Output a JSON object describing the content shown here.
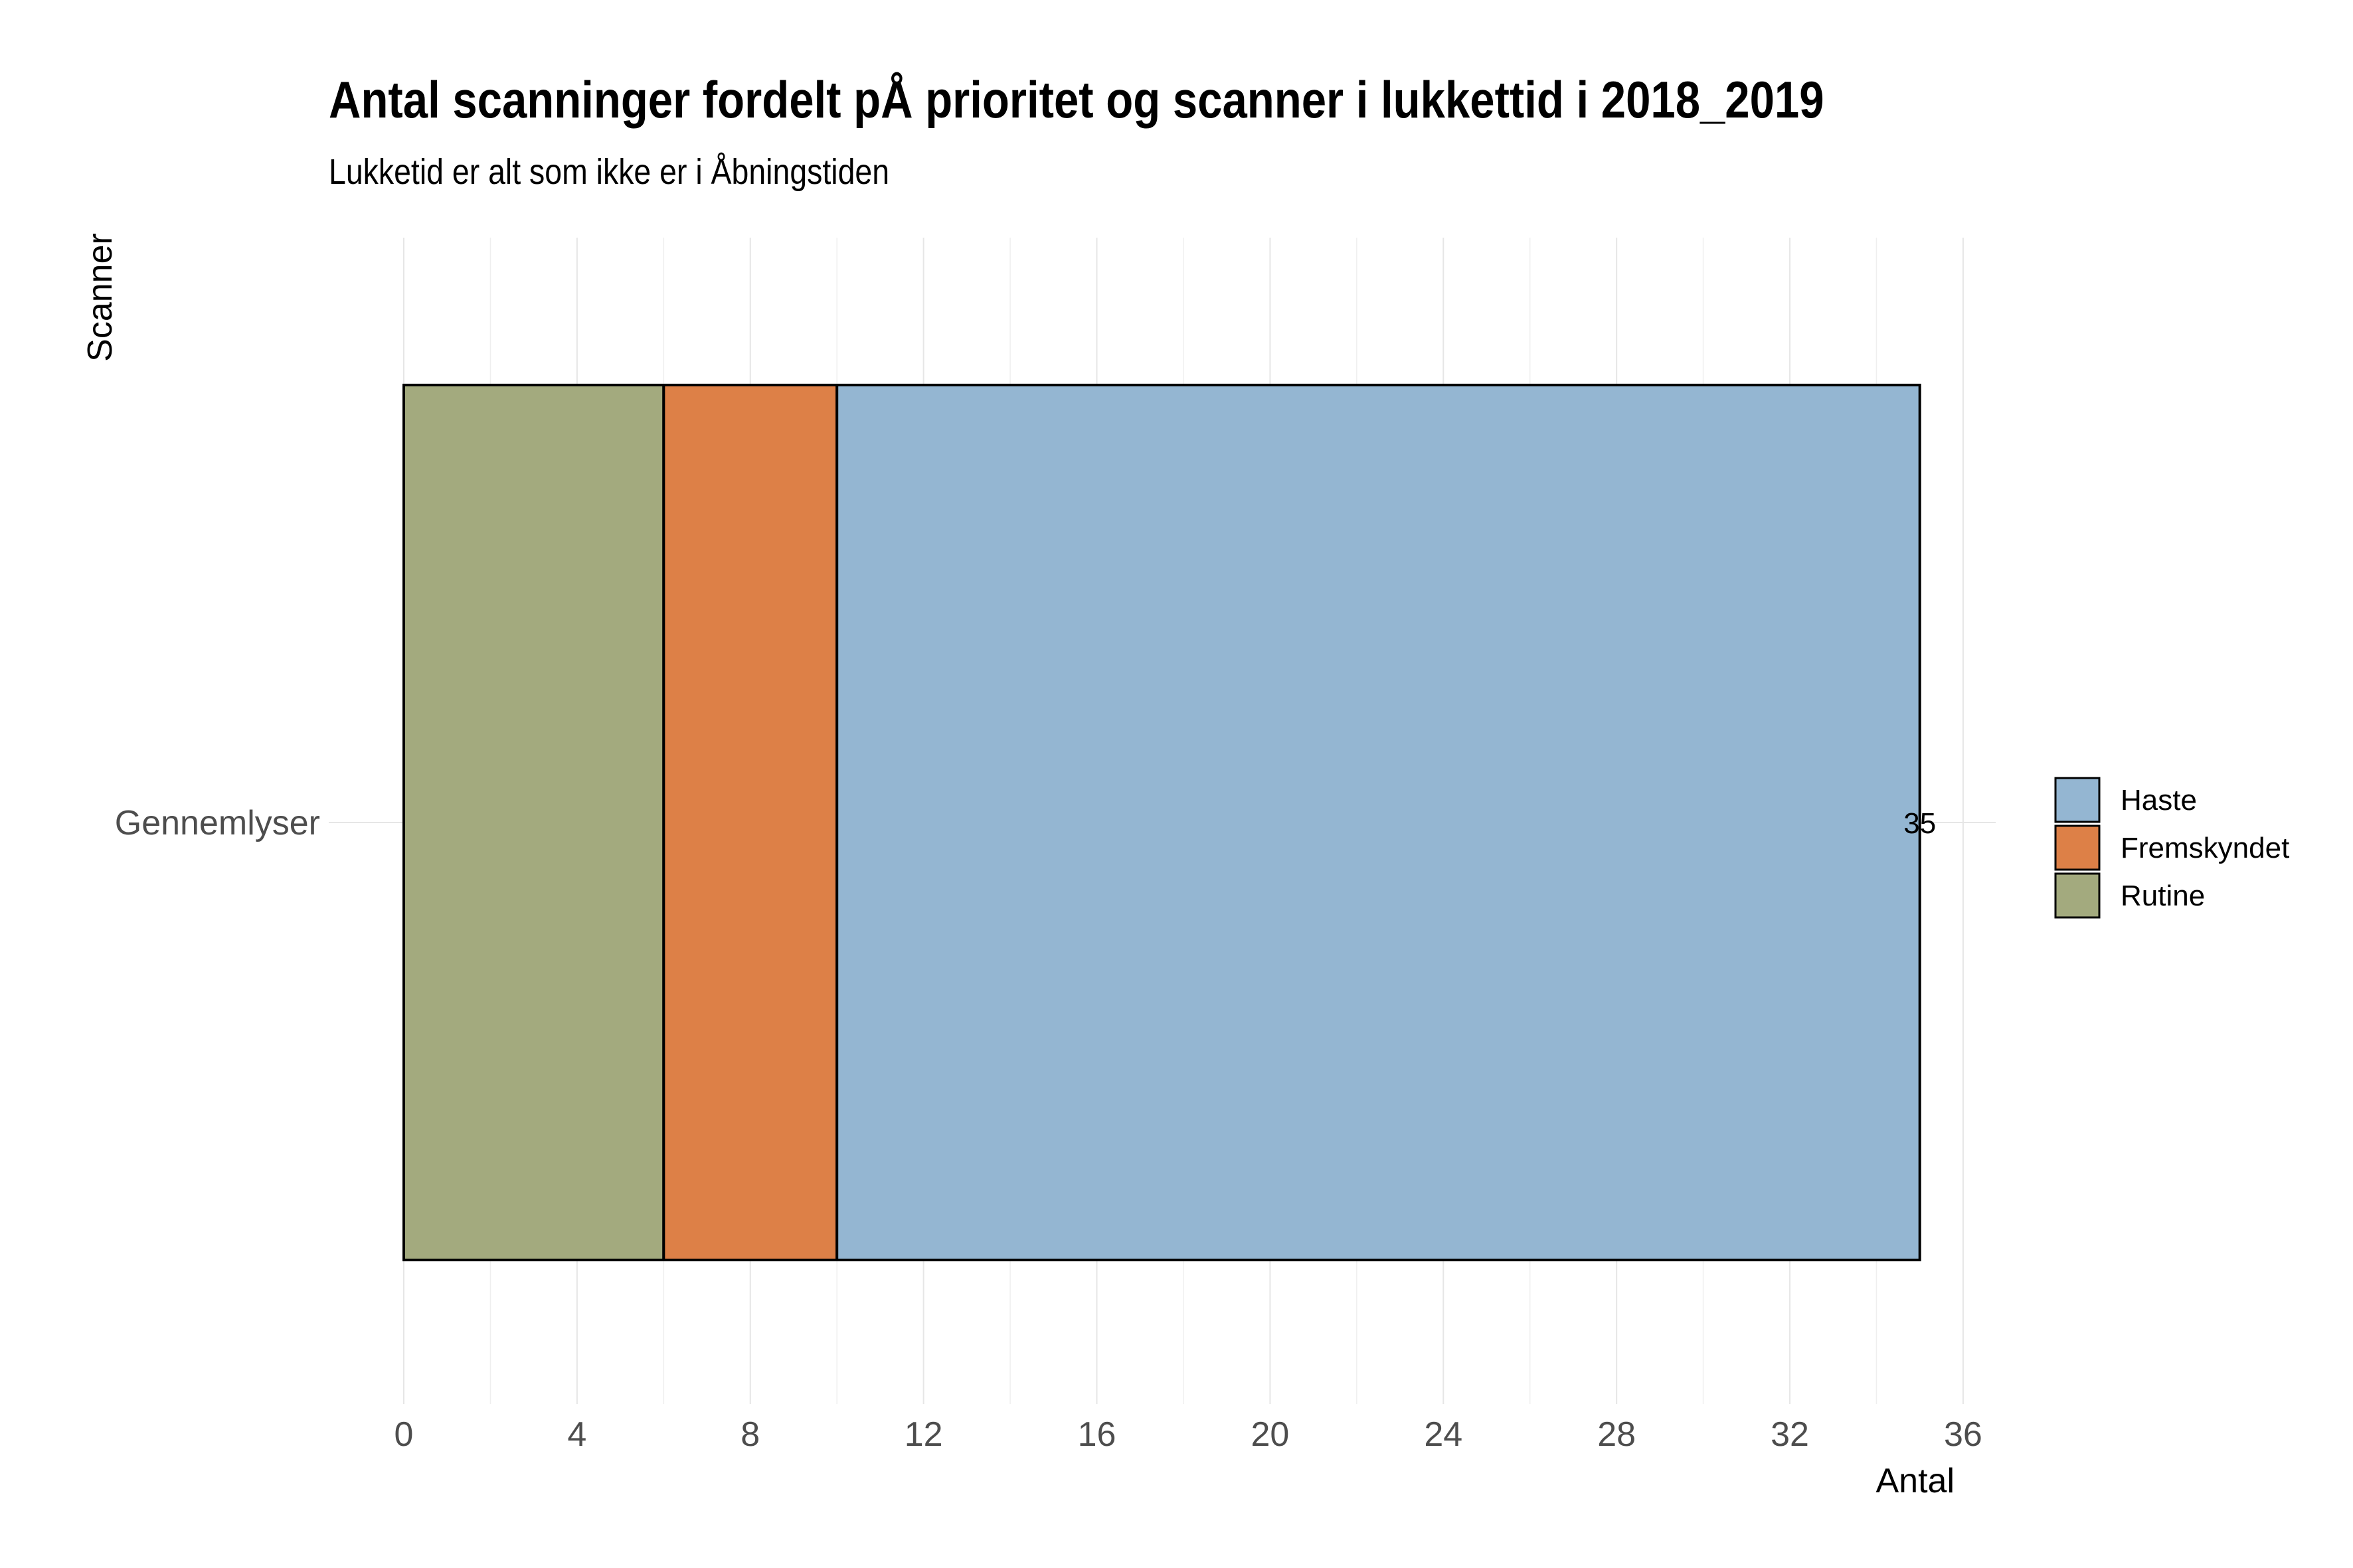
{
  "chart_data": {
    "type": "bar",
    "orientation": "horizontal",
    "stacked": true,
    "title": "Antal scanninger fordelt pÅ prioritet og scanner i lukkettid i 2018_2019",
    "subtitle": "Lukketid er alt som ikke er i Åbningstiden",
    "xlabel": "Antal",
    "ylabel": "Scanner",
    "categories": [
      "Gennemlyser"
    ],
    "series": [
      {
        "name": "Rutine",
        "values": [
          6
        ],
        "color": "#A3AA7E"
      },
      {
        "name": "Fremskyndet",
        "values": [
          4
        ],
        "color": "#DD8047"
      },
      {
        "name": "Haste",
        "values": [
          25
        ],
        "color": "#94B6D2"
      }
    ],
    "totals": [
      35
    ],
    "total_labels": [
      "35"
    ],
    "x_ticks": [
      0,
      4,
      8,
      12,
      16,
      20,
      24,
      28,
      32,
      36
    ],
    "x_tick_labels": [
      "0",
      "4",
      "8",
      "12",
      "16",
      "20",
      "24",
      "28",
      "32",
      "36"
    ],
    "xlim": [
      0,
      36.75
    ],
    "legend": {
      "position": "right",
      "order": [
        "Haste",
        "Fremskyndet",
        "Rutine"
      ]
    },
    "grid": true
  }
}
